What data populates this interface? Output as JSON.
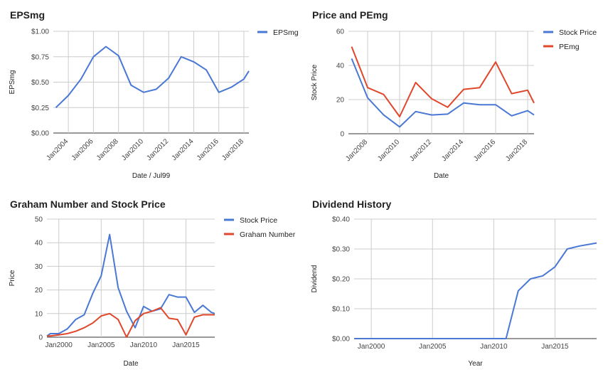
{
  "chart_data": [
    {
      "id": "eps",
      "type": "line",
      "title": "EPSmg",
      "xlabel": "Date / Jul99",
      "ylabel": "EPSmg",
      "x_ticks": [
        "Jan2004",
        "Jan2006",
        "Jan2008",
        "Jan2010",
        "Jan2012",
        "Jan2014",
        "Jan2016",
        "Jan2018"
      ],
      "y_ticks": [
        "$0.00",
        "$0.25",
        "$0.50",
        "$0.75",
        "$1.00"
      ],
      "ylim": [
        0,
        1
      ],
      "xlim": [
        2002.8,
        2018.4
      ],
      "legend_position": "top-right",
      "grid": true,
      "series": [
        {
          "name": "EPSmg",
          "color": "#4a78d4",
          "x": [
            2003,
            2004,
            2005,
            2006,
            2007,
            2008,
            2009,
            2010,
            2011,
            2012,
            2013,
            2014,
            2015,
            2016,
            2017,
            2018,
            2018.4
          ],
          "y": [
            0.25,
            0.37,
            0.53,
            0.75,
            0.85,
            0.76,
            0.47,
            0.4,
            0.43,
            0.54,
            0.75,
            0.7,
            0.62,
            0.4,
            0.45,
            0.53,
            0.61
          ]
        }
      ]
    },
    {
      "id": "pe",
      "type": "line",
      "title": "Price and PEmg",
      "xlabel": "Date",
      "ylabel": "Stock Price",
      "x_ticks": [
        "Jan2008",
        "Jan2010",
        "Jan2012",
        "Jan2014",
        "Jan2016",
        "Jan2018"
      ],
      "y_ticks": [
        "0",
        "20",
        "40",
        "60"
      ],
      "ylim": [
        0,
        60
      ],
      "xlim": [
        2006.8,
        2018.4
      ],
      "legend_position": "top-right",
      "grid": true,
      "series": [
        {
          "name": "Stock Price",
          "color": "#4a78d4",
          "x": [
            2007,
            2008,
            2009,
            2010,
            2011,
            2012,
            2013,
            2014,
            2015,
            2016,
            2017,
            2018,
            2018.4
          ],
          "y": [
            44,
            21,
            11,
            4,
            13,
            11,
            11.5,
            18,
            17,
            17,
            10.5,
            13.5,
            11
          ]
        },
        {
          "name": "PEmg",
          "color": "#e0472b",
          "x": [
            2007,
            2008,
            2009,
            2010,
            2011,
            2012,
            2013,
            2014,
            2015,
            2016,
            2017,
            2018,
            2018.4
          ],
          "y": [
            51,
            27,
            23,
            10,
            30,
            20.5,
            15.5,
            26,
            27,
            42,
            23.5,
            25.5,
            18
          ]
        }
      ]
    },
    {
      "id": "graham",
      "type": "line",
      "title": "Graham Number and Stock Price",
      "xlabel": "Date",
      "ylabel": "Price",
      "x_ticks": [
        "Jan2000",
        "Jan2005",
        "Jan2010",
        "Jan2015"
      ],
      "y_ticks": [
        "0",
        "10",
        "20",
        "30",
        "40",
        "50"
      ],
      "ylim": [
        0,
        50
      ],
      "xlim": [
        1998.6,
        2018.4
      ],
      "legend_position": "top-right",
      "grid": true,
      "series": [
        {
          "name": "Stock Price",
          "color": "#4a78d4",
          "x": [
            1998.6,
            1999,
            2000,
            2001,
            2002,
            2003,
            2004,
            2005,
            2006,
            2007,
            2008,
            2009,
            2010,
            2011,
            2012,
            2013,
            2014,
            2015,
            2016,
            2017,
            2018,
            2018.4
          ],
          "y": [
            0.5,
            1.5,
            1.5,
            3.5,
            7.5,
            9.5,
            18.5,
            26,
            43.5,
            21,
            11,
            4,
            13,
            11,
            12,
            18,
            17,
            17,
            10.5,
            13.5,
            10.5,
            10
          ]
        },
        {
          "name": "Graham Number",
          "color": "#e0472b",
          "x": [
            1998.6,
            1999,
            2000,
            2001,
            2002,
            2003,
            2004,
            2005,
            2006,
            2007,
            2008,
            2009,
            2010,
            2011,
            2012,
            2013,
            2014,
            2015,
            2016,
            2017,
            2018,
            2018.4
          ],
          "y": [
            0.5,
            0.5,
            1,
            1.5,
            2.5,
            4,
            6,
            9,
            10,
            7.5,
            0,
            7,
            10,
            11,
            12.5,
            8,
            7.5,
            1,
            8.5,
            9.5,
            9.5,
            9.5
          ]
        }
      ]
    },
    {
      "id": "div",
      "type": "line",
      "title": "Dividend History",
      "xlabel": "Year",
      "ylabel": "Dividend",
      "x_ticks": [
        "Jan2000",
        "Jan2005",
        "Jan2010",
        "Jan2015"
      ],
      "y_ticks": [
        "$0.00",
        "$0.10",
        "$0.20",
        "$0.30",
        "$0.40"
      ],
      "ylim": [
        0,
        0.4
      ],
      "xlim": [
        1998.6,
        2018.4
      ],
      "grid": true,
      "series": [
        {
          "color": "#4a78d4",
          "x": [
            1998.6,
            2000,
            2005,
            2010,
            2011,
            2012,
            2013,
            2014,
            2015,
            2016,
            2017,
            2018.4
          ],
          "y": [
            0,
            0,
            0,
            0,
            0,
            0.16,
            0.2,
            0.21,
            0.24,
            0.3,
            0.31,
            0.32
          ]
        }
      ]
    }
  ]
}
